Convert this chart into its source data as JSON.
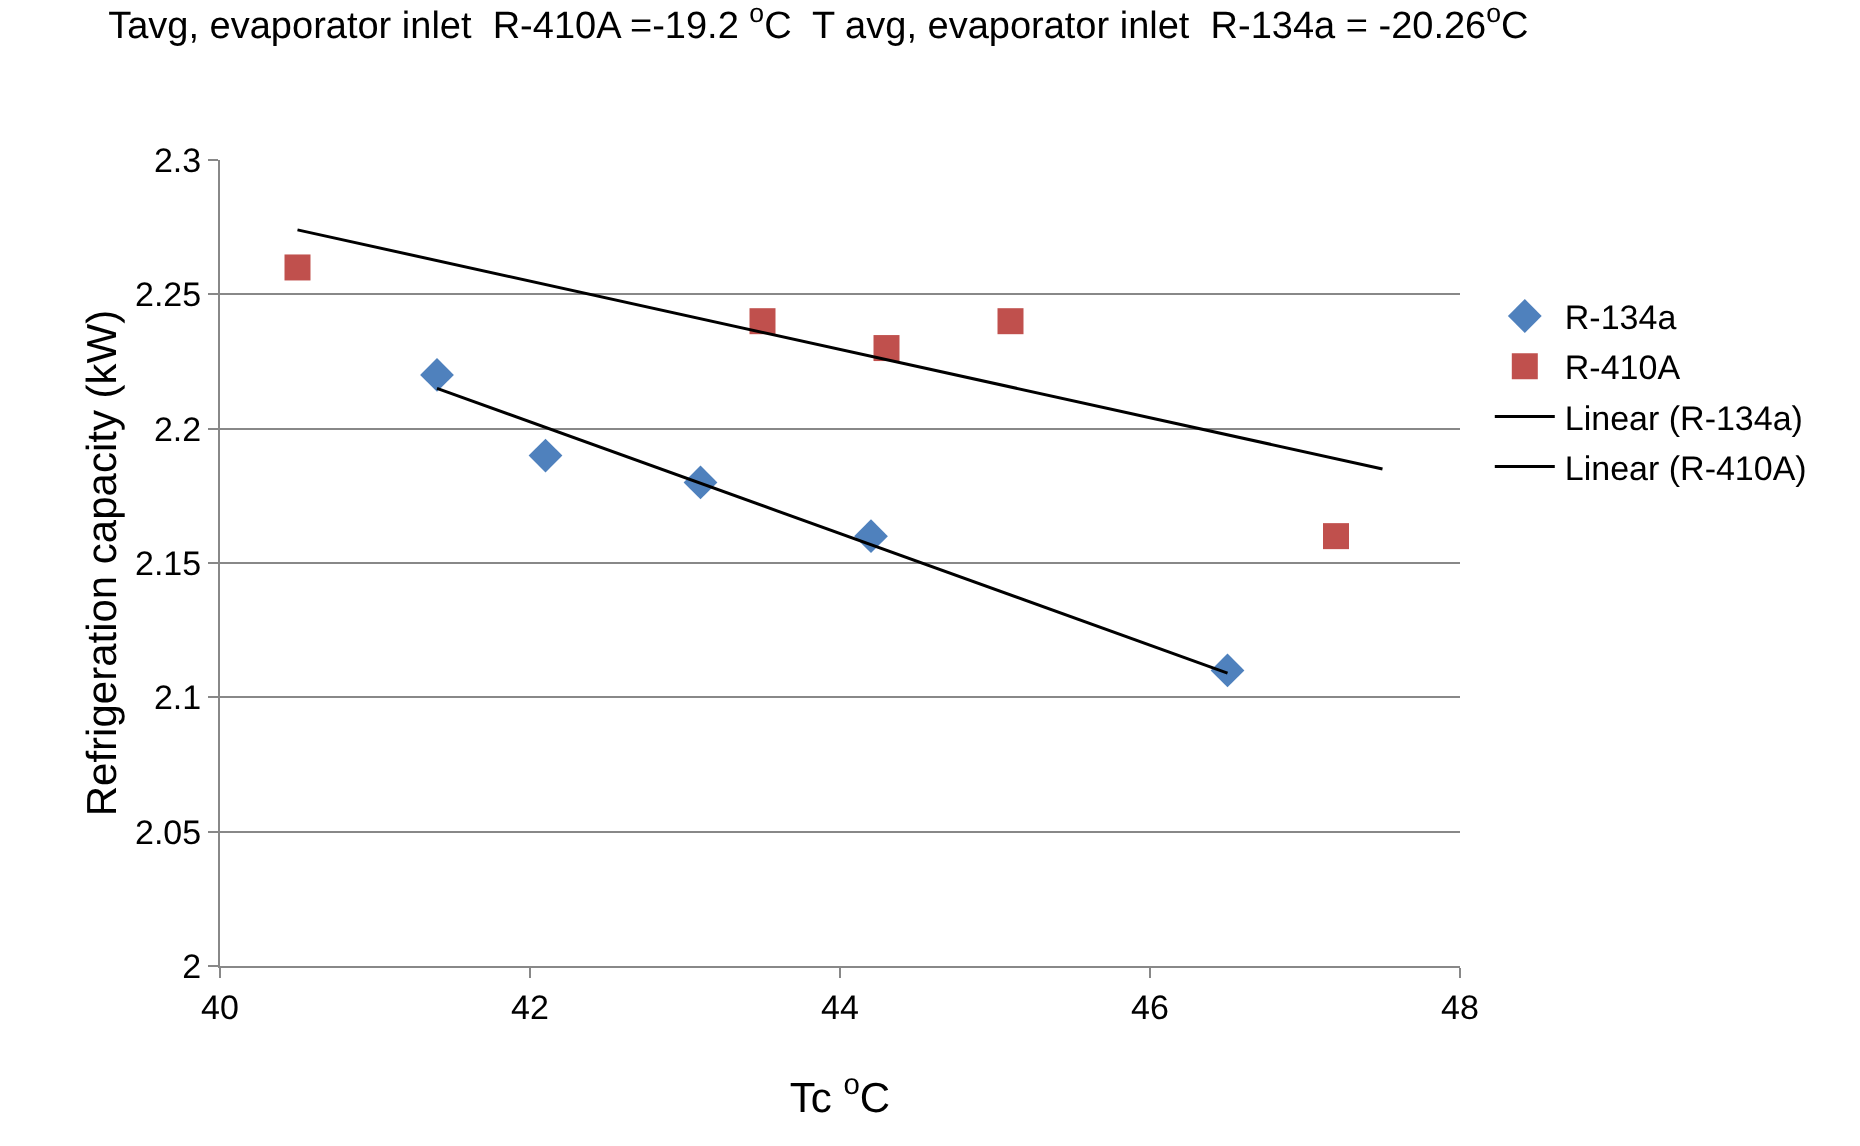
{
  "chart_data": {
    "type": "scatter",
    "title": "Tavg, evaporator inlet  R-410A =-19.2 $^{o}$C  T avg, evaporator inlet  R-134a = -20.26$^{o}$C",
    "xlabel": "Tc $^{o}$C",
    "ylabel": "Refrigeration capacity (kW)",
    "xlim": [
      40,
      48
    ],
    "xticks": [
      40,
      42,
      44,
      46,
      48
    ],
    "ylim": [
      2,
      2.3
    ],
    "yticks": [
      2,
      2.05,
      2.1,
      2.15,
      2.2,
      2.25,
      2.3
    ],
    "grid": "y",
    "legend": "right",
    "series": [
      {
        "name": "R-134a",
        "color": "#4f81bd",
        "marker": "diamond",
        "x": [
          41.4,
          42.1,
          43.1,
          44.2,
          46.5
        ],
        "values": [
          2.22,
          2.19,
          2.18,
          2.16,
          2.11
        ]
      },
      {
        "name": "R-410A",
        "color": "#c0504d",
        "marker": "square",
        "x": [
          40.5,
          43.5,
          44.3,
          45.1,
          47.2
        ],
        "values": [
          2.26,
          2.24,
          2.23,
          2.24,
          2.16
        ]
      },
      {
        "name": "Linear (R-134a)",
        "type": "line",
        "color": "#000000",
        "x": [
          41.4,
          46.5
        ],
        "values": [
          2.215,
          2.109
        ]
      },
      {
        "name": "Linear (R-410A)",
        "type": "line",
        "color": "#000000",
        "x": [
          40.5,
          47.5
        ],
        "values": [
          2.274,
          2.185
        ]
      }
    ]
  }
}
